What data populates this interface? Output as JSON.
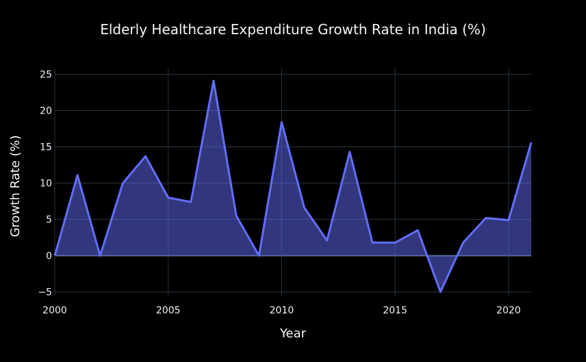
{
  "chart_data": {
    "type": "area",
    "title": "Elderly Healthcare Expenditure Growth Rate in India (%)",
    "xlabel": "Year",
    "ylabel": "Growth Rate (%)",
    "x": [
      2000,
      2001,
      2002,
      2003,
      2004,
      2005,
      2006,
      2007,
      2008,
      2009,
      2010,
      2011,
      2012,
      2013,
      2014,
      2015,
      2016,
      2017,
      2018,
      2019,
      2020,
      2021
    ],
    "values": [
      0.0,
      11.1,
      0.0,
      10.0,
      13.7,
      8.0,
      7.4,
      24.1,
      5.5,
      0.0,
      18.4,
      6.6,
      2.1,
      14.3,
      1.8,
      1.8,
      3.5,
      -5.0,
      1.8,
      5.2,
      4.9,
      15.6
    ],
    "xlim": [
      2000,
      2021
    ],
    "ylim": [
      -5.6,
      25.8
    ],
    "xticks": [
      2000,
      2005,
      2010,
      2015,
      2020
    ],
    "yticks": [
      -5,
      0,
      5,
      10,
      15,
      20,
      25
    ],
    "ytick_labels": [
      "−5",
      "0",
      "5",
      "10",
      "15",
      "20",
      "25"
    ],
    "grid": true,
    "colors": {
      "background": "#000000",
      "line": "#636efa",
      "fill": "rgba(99,110,250,0.5)",
      "grid": "#283442",
      "zero_line": "#506784",
      "text": "#f2f5fa"
    }
  }
}
